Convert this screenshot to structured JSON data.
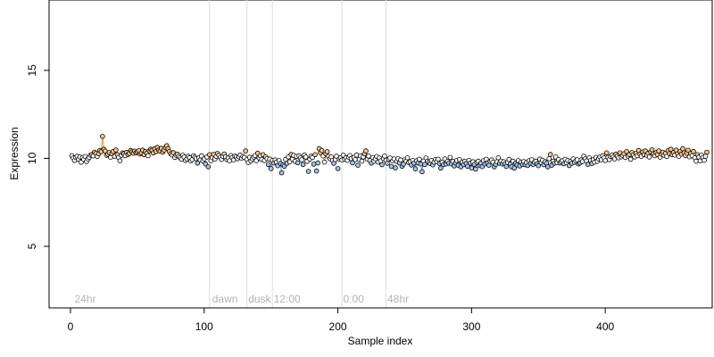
{
  "chart_data": {
    "type": "scatter",
    "title": "",
    "xlabel": "Sample index",
    "ylabel": "Expression",
    "xlim": [
      -16,
      480
    ],
    "ylim": [
      1.5,
      19.0
    ],
    "xticks": [
      0,
      100,
      200,
      300,
      400
    ],
    "yticks": [
      5,
      10,
      15
    ],
    "grid": false,
    "phase_lines": [
      {
        "x": 104,
        "label": ""
      },
      {
        "x": 132,
        "label": ""
      },
      {
        "x": 151,
        "label": ""
      },
      {
        "x": 203,
        "label": ""
      },
      {
        "x": 236,
        "label": ""
      }
    ],
    "phase_labels": [
      {
        "x": 3,
        "label": "24hr"
      },
      {
        "x": 106,
        "label": "dawn"
      },
      {
        "x": 133,
        "label": "dusk"
      },
      {
        "x": 152,
        "label": "12:00"
      },
      {
        "x": 204,
        "label": "0:00"
      },
      {
        "x": 237,
        "label": "48hr"
      }
    ],
    "label_y": 2.0,
    "colors": {
      "above": "#f5c48a",
      "below": "#a9c3e6",
      "neutral": "#ffffff",
      "trend_high": "#f0a040",
      "trend_low": "#6f9fdc",
      "phase_line": "#dddddd",
      "point_stroke": "#000000"
    },
    "series": [
      {
        "x_start": 1,
        "x_step": 1,
        "values": [
          10.15,
          10.02,
          9.88,
          10.05,
          10.12,
          9.95,
          10.08,
          9.78,
          10.04,
          9.93,
          10.11,
          9.82,
          9.96,
          10.05,
          10.18,
          10.22,
          10.14,
          10.35,
          10.28,
          10.11,
          10.26,
          10.45,
          10.38,
          11.25,
          10.52,
          10.41,
          10.18,
          10.23,
          10.33,
          10.06,
          10.27,
          10.39,
          10.12,
          10.48,
          10.21,
          10.05,
          9.86,
          10.18,
          10.31,
          10.27,
          10.15,
          10.34,
          10.22,
          10.28,
          10.45,
          10.37,
          10.29,
          10.41,
          10.32,
          10.36,
          10.44,
          10.25,
          10.31,
          10.47,
          10.21,
          10.38,
          10.29,
          10.15,
          10.43,
          10.52,
          10.46,
          10.31,
          10.55,
          10.38,
          10.62,
          10.47,
          10.41,
          10.57,
          10.35,
          10.46,
          10.61,
          10.72,
          10.55,
          10.38,
          10.26,
          10.19,
          10.32,
          10.05,
          10.18,
          10.24,
          10.11,
          10.03,
          9.95,
          10.18,
          10.07,
          9.88,
          9.97,
          10.12,
          10.04,
          9.86,
          9.93,
          10.15,
          10.06,
          9.98,
          9.73,
          10.02,
          9.91,
          10.14,
          9.85,
          9.97,
          9.68,
          10.08,
          9.52,
          10.21,
          9.87,
          10.04,
          10.23,
          9.96,
          10.11,
          10.28,
          10.17,
          10.06,
          9.94,
          10.12,
          10.25,
          10.08,
          9.93,
          10.02,
          9.87,
          10.16,
          10.04,
          9.91,
          10.13,
          10.07,
          9.98,
          10.09,
          10.19,
          10.01,
          10.11,
          10.05,
          10.42,
          9.93,
          9.76,
          10.06,
          9.85,
          9.97,
          10.07,
          10.16,
          9.87,
          10.29,
          10.02,
          10.15,
          9.94,
          10.21,
          9.88,
          10.08,
          9.99,
          9.65,
          9.96,
          9.42,
          9.88,
          9.74,
          9.91,
          9.79,
          9.58,
          9.87,
          9.71,
          9.18,
          9.63,
          9.55,
          9.94,
          9.72,
          10.08,
          9.81,
          10.22,
          9.96,
          10.17,
          9.83,
          10.11,
          9.75,
          10.14,
          10.02,
          9.92,
          9.65,
          10.19,
          10.08,
          9.83,
          9.26,
          9.95,
          10.12,
          10.05,
          9.67,
          10.21,
          9.28,
          9.74,
          10.55,
          10.32,
          10.45,
          10.14,
          9.79,
          10.26,
          10.38,
          10.11,
          9.98,
          10.08,
          9.88,
          9.72,
          9.93,
          10.12,
          9.42,
          9.97,
          10.03,
          9.91,
          10.18,
          9.95,
          10.04,
          9.89,
          10.07,
          10.16,
          9.99,
          9.75,
          10.05,
          9.93,
          10.19,
          9.61,
          9.94,
          10.14,
          9.84,
          10.08,
          10.26,
          10.42,
          9.96,
          10.13,
          9.88,
          9.73,
          10.05,
          9.84,
          9.97,
          10.11,
          9.79,
          10.02,
          9.86,
          9.64,
          9.99,
          10.13,
          9.89,
          9.72,
          9.95,
          10.02,
          9.54,
          9.86,
          9.97,
          9.46,
          9.83,
          9.98,
          9.74,
          9.91,
          9.55,
          9.67,
          9.92,
          9.84,
          10.03,
          9.77,
          9.81,
          9.62,
          9.88,
          9.73,
          9.41,
          9.86,
          9.74,
          9.95,
          9.68,
          9.24,
          9.85,
          9.65,
          10.02,
          9.84,
          9.77,
          9.71,
          9.88,
          9.63,
          9.79,
          9.93,
          9.82,
          9.95,
          9.71,
          9.45,
          9.78,
          9.64,
          9.97,
          9.68,
          9.83,
          9.73,
          10.05,
          9.68,
          9.83,
          9.57,
          9.74,
          9.88,
          9.61,
          9.93,
          9.52,
          9.79,
          9.64,
          9.84,
          9.71,
          9.55,
          9.88,
          9.73,
          9.46,
          9.81,
          9.65,
          9.39,
          9.78,
          9.84,
          9.59,
          9.72,
          9.53,
          9.87,
          9.68,
          9.95,
          9.73,
          9.61,
          9.84,
          9.91,
          9.78,
          9.52,
          9.66,
          9.81,
          10.03,
          9.72,
          9.85,
          9.68,
          9.81,
          9.69,
          9.54,
          9.77,
          9.94,
          9.68,
          9.52,
          9.84,
          9.45,
          9.72,
          9.63,
          9.87,
          9.57,
          9.78,
          9.66,
          9.82,
          9.64,
          9.76,
          9.59,
          9.87,
          9.71,
          9.92,
          9.66,
          9.78,
          9.84,
          9.69,
          9.58,
          9.96,
          9.77,
          9.89,
          9.64,
          9.81,
          9.73,
          9.52,
          9.98,
          10.22,
          9.61,
          9.84,
          9.72,
          10.08,
          9.76,
          9.93,
          9.74,
          9.81,
          9.87,
          9.69,
          9.95,
          9.76,
          9.88,
          9.59,
          9.84,
          9.72,
          9.97,
          9.78,
          9.85,
          9.92,
          9.68,
          9.74,
          9.91,
          9.82,
          10.12,
          9.97,
          9.86,
          9.66,
          10.03,
          9.88,
          9.71,
          9.92,
          9.79,
          10.05,
          9.83,
          9.97,
          10.08,
          9.92,
          10.14,
          10.02,
          9.88,
          10.31,
          10.05,
          9.93,
          10.11,
          10.19,
          10.08,
          9.97,
          10.24,
          10.12,
          10.03,
          10.31,
          10.09,
          10.17,
          10.26,
          10.05,
          10.38,
          10.14,
          10.22,
          9.95,
          10.33,
          10.19,
          10.08,
          10.28,
          10.15,
          10.45,
          10.24,
          10.12,
          10.36,
          10.21,
          10.42,
          10.18,
          10.29,
          10.08,
          10.37,
          10.49,
          10.26,
          10.15,
          10.32,
          10.21,
          10.43,
          10.07,
          10.24,
          10.35,
          10.18,
          10.29,
          10.11,
          10.44,
          10.27,
          10.52,
          10.21,
          10.33,
          10.19,
          10.47,
          10.26,
          10.12,
          10.38,
          10.24,
          10.55,
          10.32,
          10.17,
          10.29,
          10.46,
          10.09,
          10.28,
          10.15,
          10.39,
          10.03,
          9.84,
          10.21,
          10.07,
          9.86,
          10.18,
          10.05,
          9.89,
          10.12,
          10.35
        ]
      }
    ],
    "trend_high_ranges": [
      [
        0,
        62
      ],
      [
        186,
        196
      ],
      [
        405,
        462
      ]
    ],
    "trend_low_ranges": [
      [
        92,
        100
      ],
      [
        150,
        158
      ],
      [
        250,
        330
      ]
    ]
  }
}
